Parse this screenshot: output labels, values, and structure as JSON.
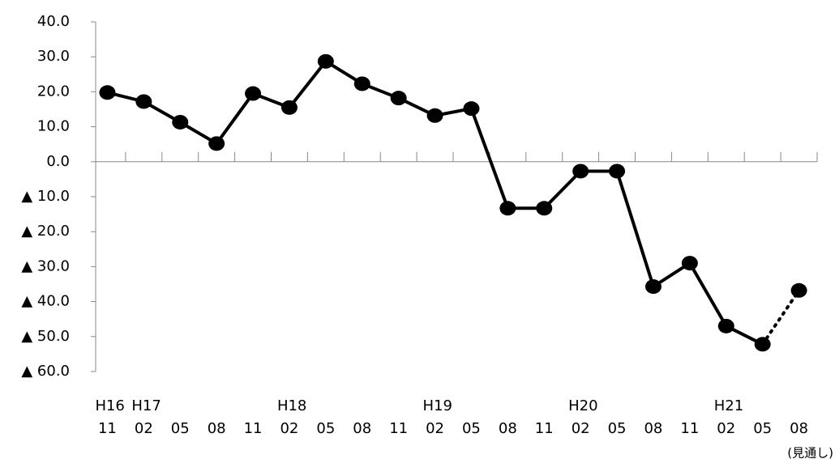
{
  "chart_data": {
    "type": "line",
    "categories": [
      "11",
      "02",
      "05",
      "08",
      "11",
      "02",
      "05",
      "08",
      "11",
      "02",
      "05",
      "08",
      "11",
      "02",
      "05",
      "08",
      "11",
      "02",
      "05",
      "08"
    ],
    "era_labels": [
      "H16",
      "H17",
      null,
      null,
      null,
      "H18",
      null,
      null,
      null,
      "H19",
      null,
      null,
      null,
      "H20",
      null,
      null,
      null,
      "H21",
      null,
      null
    ],
    "annotation": "(見通し)",
    "color": "#000000",
    "values": [
      19.8,
      17.2,
      11.3,
      5.2,
      19.5,
      15.5,
      28.7,
      22.3,
      18.2,
      13.2,
      15.2,
      -13.3,
      -13.3,
      -2.7,
      -2.7,
      -35.7,
      -29.0,
      -47.0,
      -52.2,
      -36.8
    ],
    "projection_start": 18,
    "ylim": [
      -60,
      40
    ],
    "yticks": [
      {
        "value": 40,
        "label": "40.0"
      },
      {
        "value": 30,
        "label": "30.0"
      },
      {
        "value": 20,
        "label": "20.0"
      },
      {
        "value": 10,
        "label": "10.0"
      },
      {
        "value": 0,
        "label": "0.0"
      },
      {
        "value": -10,
        "label": "▲ 10.0"
      },
      {
        "value": -20,
        "label": "▲ 20.0"
      },
      {
        "value": -30,
        "label": "▲ 30.0"
      },
      {
        "value": -40,
        "label": "▲ 40.0"
      },
      {
        "value": -50,
        "label": "▲ 50.0"
      },
      {
        "value": -60,
        "label": "▲ 60.0"
      }
    ],
    "grid": false
  }
}
